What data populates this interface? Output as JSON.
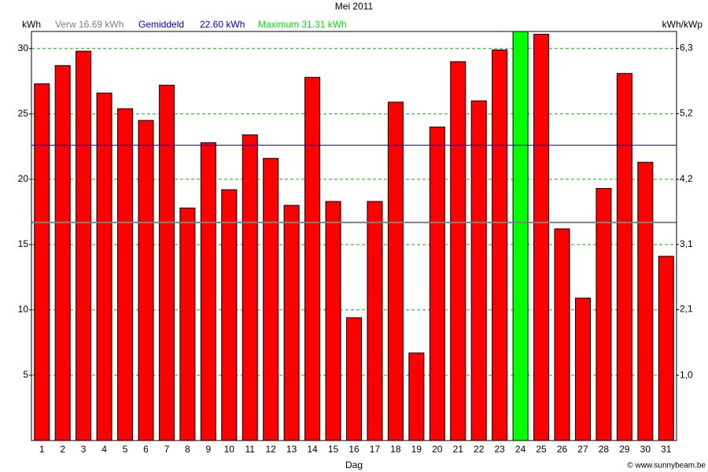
{
  "chart_data": {
    "type": "bar",
    "title": "Mei 2011",
    "x_label": "Dag",
    "y_label": "kWh",
    "y2_label": "kWh/kWp",
    "categories": [
      "1",
      "2",
      "3",
      "4",
      "5",
      "6",
      "7",
      "8",
      "9",
      "10",
      "11",
      "12",
      "13",
      "14",
      "15",
      "16",
      "17",
      "18",
      "19",
      "20",
      "21",
      "22",
      "23",
      "24",
      "25",
      "26",
      "27",
      "28",
      "29",
      "30",
      "31"
    ],
    "values": [
      27.3,
      28.7,
      29.8,
      26.6,
      25.4,
      24.5,
      27.2,
      17.8,
      22.8,
      19.2,
      23.4,
      21.6,
      18.0,
      27.8,
      18.3,
      9.4,
      18.3,
      25.9,
      6.7,
      24.0,
      29.0,
      26.0,
      29.9,
      31.31,
      31.1,
      16.2,
      10.9,
      19.3,
      28.1,
      21.3,
      14.1
    ],
    "color": "#ff0000",
    "max_color": "#00ff00",
    "ylim": [
      0,
      31.31
    ],
    "yticks": [
      5,
      10,
      15,
      20,
      25,
      30
    ],
    "y2lim": [
      0,
      6.53
    ],
    "y2ticks": [
      {
        "value": 1.04,
        "label": "1,0"
      },
      {
        "value": 2.09,
        "label": "2,1"
      },
      {
        "value": 3.13,
        "label": "3,1"
      },
      {
        "value": 4.17,
        "label": "4,2"
      },
      {
        "value": 5.22,
        "label": "5,2"
      },
      {
        "value": 6.26,
        "label": "6,3"
      }
    ],
    "grid": true,
    "grid_color": "#00c000",
    "reference_lines": [
      {
        "label": "Verw 16.69 kWh",
        "value": 16.69,
        "color": "#808080"
      },
      {
        "label": "Gemiddeld",
        "value_label": "22.60 kWh",
        "value": 22.6,
        "color": "#0000c0"
      }
    ],
    "maximum_label": "Maximum 31.31 kWh",
    "credit": "© www.sunnybeam.be"
  }
}
